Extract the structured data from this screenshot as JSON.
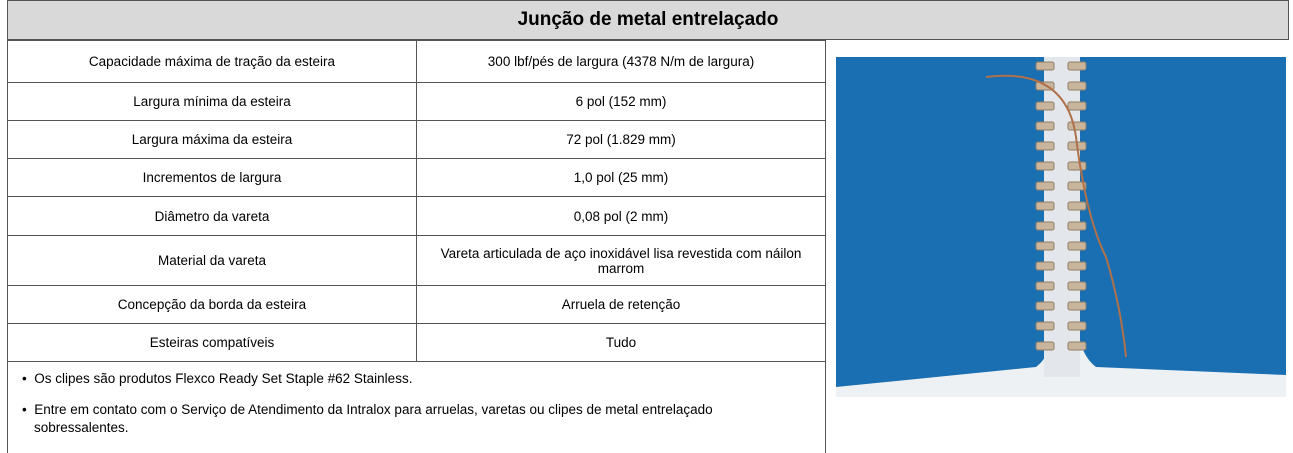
{
  "title": "Junção de metal entrelaçado",
  "table": {
    "rows": [
      [
        "Capacidade máxima de tração da esteira",
        "300 lbf/pés de largura (4378 N/m de largura)"
      ],
      [
        "Largura mínima da esteira",
        "6 pol (152 mm)"
      ],
      [
        "Largura máxima da esteira",
        "72 pol (1.829 mm)"
      ],
      [
        "Incrementos de largura",
        "1,0 pol (25 mm)"
      ],
      [
        "Diâmetro da vareta",
        "0,08 pol (2 mm)"
      ],
      [
        "Material da vareta",
        "Vareta articulada de aço inoxidável lisa revestida com náilon marrom"
      ],
      [
        "Concepção da borda da esteira",
        "Arruela de retenção"
      ],
      [
        "Esteiras compatíveis",
        "Tudo"
      ]
    ]
  },
  "notes": [
    "Os clipes são produtos Flexco Ready Set Staple #62 Stainless.",
    "Entre em contato com o Serviço de Atendimento da Intralox para arruelas, varetas ou clipes de metal entrelaça­do sobressalentes."
  ]
}
